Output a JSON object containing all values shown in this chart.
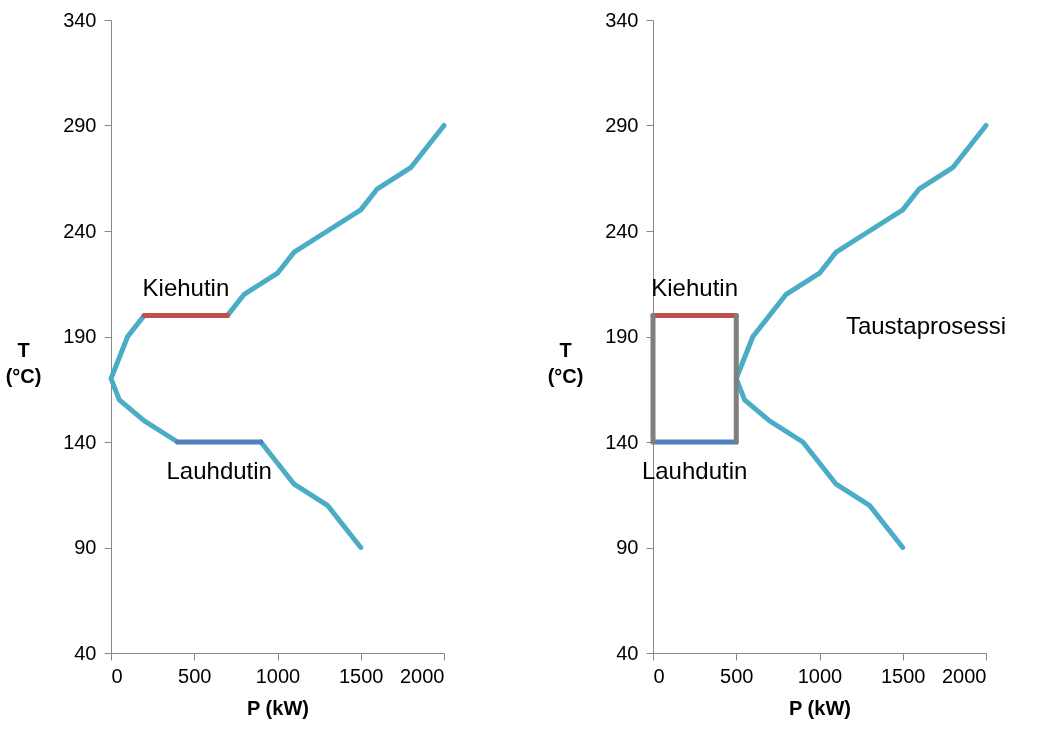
{
  "chart_data": [
    {
      "type": "line",
      "xlabel": "P (kW)",
      "ylabel": "T\n(°C)",
      "xlim": [
        0,
        2000
      ],
      "xticks": [
        0,
        500,
        1000,
        1500,
        2000
      ],
      "ylim": [
        40,
        340
      ],
      "yticks": [
        40,
        90,
        140,
        190,
        240,
        290,
        340
      ],
      "grid": false,
      "series": [
        {
          "color": "#4bacc6",
          "x": [
            1500,
            1300,
            1100,
            900,
            650,
            400,
            200,
            50,
            0,
            100,
            200,
            450,
            700,
            800,
            1000,
            1100,
            1300,
            1500,
            1600,
            1800,
            2000
          ],
          "values": [
            90,
            110,
            120,
            140,
            null,
            140,
            150,
            160,
            170,
            190,
            200,
            null,
            200,
            210,
            220,
            230,
            240,
            250,
            260,
            270,
            290
          ]
        },
        {
          "color": "#c0504d",
          "x": [
            200,
            700
          ],
          "values": [
            200,
            200
          ]
        },
        {
          "color": "#4f81bd",
          "x": [
            400,
            900
          ],
          "values": [
            140,
            140
          ]
        }
      ],
      "annotations": [
        {
          "text": "Kiehutin",
          "x": 450,
          "y": 200
        },
        {
          "text": "Lauhdutin",
          "x": 650,
          "y": 140
        }
      ]
    },
    {
      "type": "line",
      "xlabel": "P (kW)",
      "ylabel": "T\n(°C)",
      "xlim": [
        0,
        2000
      ],
      "xticks": [
        0,
        500,
        1000,
        1500,
        2000
      ],
      "ylim": [
        40,
        340
      ],
      "yticks": [
        40,
        90,
        140,
        190,
        240,
        290,
        340
      ],
      "grid": false,
      "series": [
        {
          "color": "#4bacc6",
          "x": [
            1500,
            1300,
            1100,
            900,
            700,
            550,
            500,
            600,
            800,
            1000,
            1100,
            1300,
            1500,
            1600,
            1800,
            2000
          ],
          "values": [
            90,
            110,
            120,
            140,
            150,
            160,
            170,
            190,
            210,
            220,
            230,
            240,
            250,
            260,
            270,
            290
          ]
        },
        {
          "color": "#c0504d",
          "x": [
            0,
            500
          ],
          "values": [
            200,
            200
          ]
        },
        {
          "color": "#4f81bd",
          "x": [
            0,
            500
          ],
          "values": [
            140,
            140
          ]
        },
        {
          "color": "#7f7f7f",
          "x": [
            0,
            0,
            250,
            500,
            500
          ],
          "values": [
            140,
            200,
            null,
            200,
            140
          ]
        }
      ],
      "annotations": [
        {
          "text": "Kiehutin",
          "x": 250,
          "y": 200
        },
        {
          "text": "Lauhdutin",
          "x": 250,
          "y": 140
        },
        "Taustaprosessi"
      ]
    }
  ]
}
